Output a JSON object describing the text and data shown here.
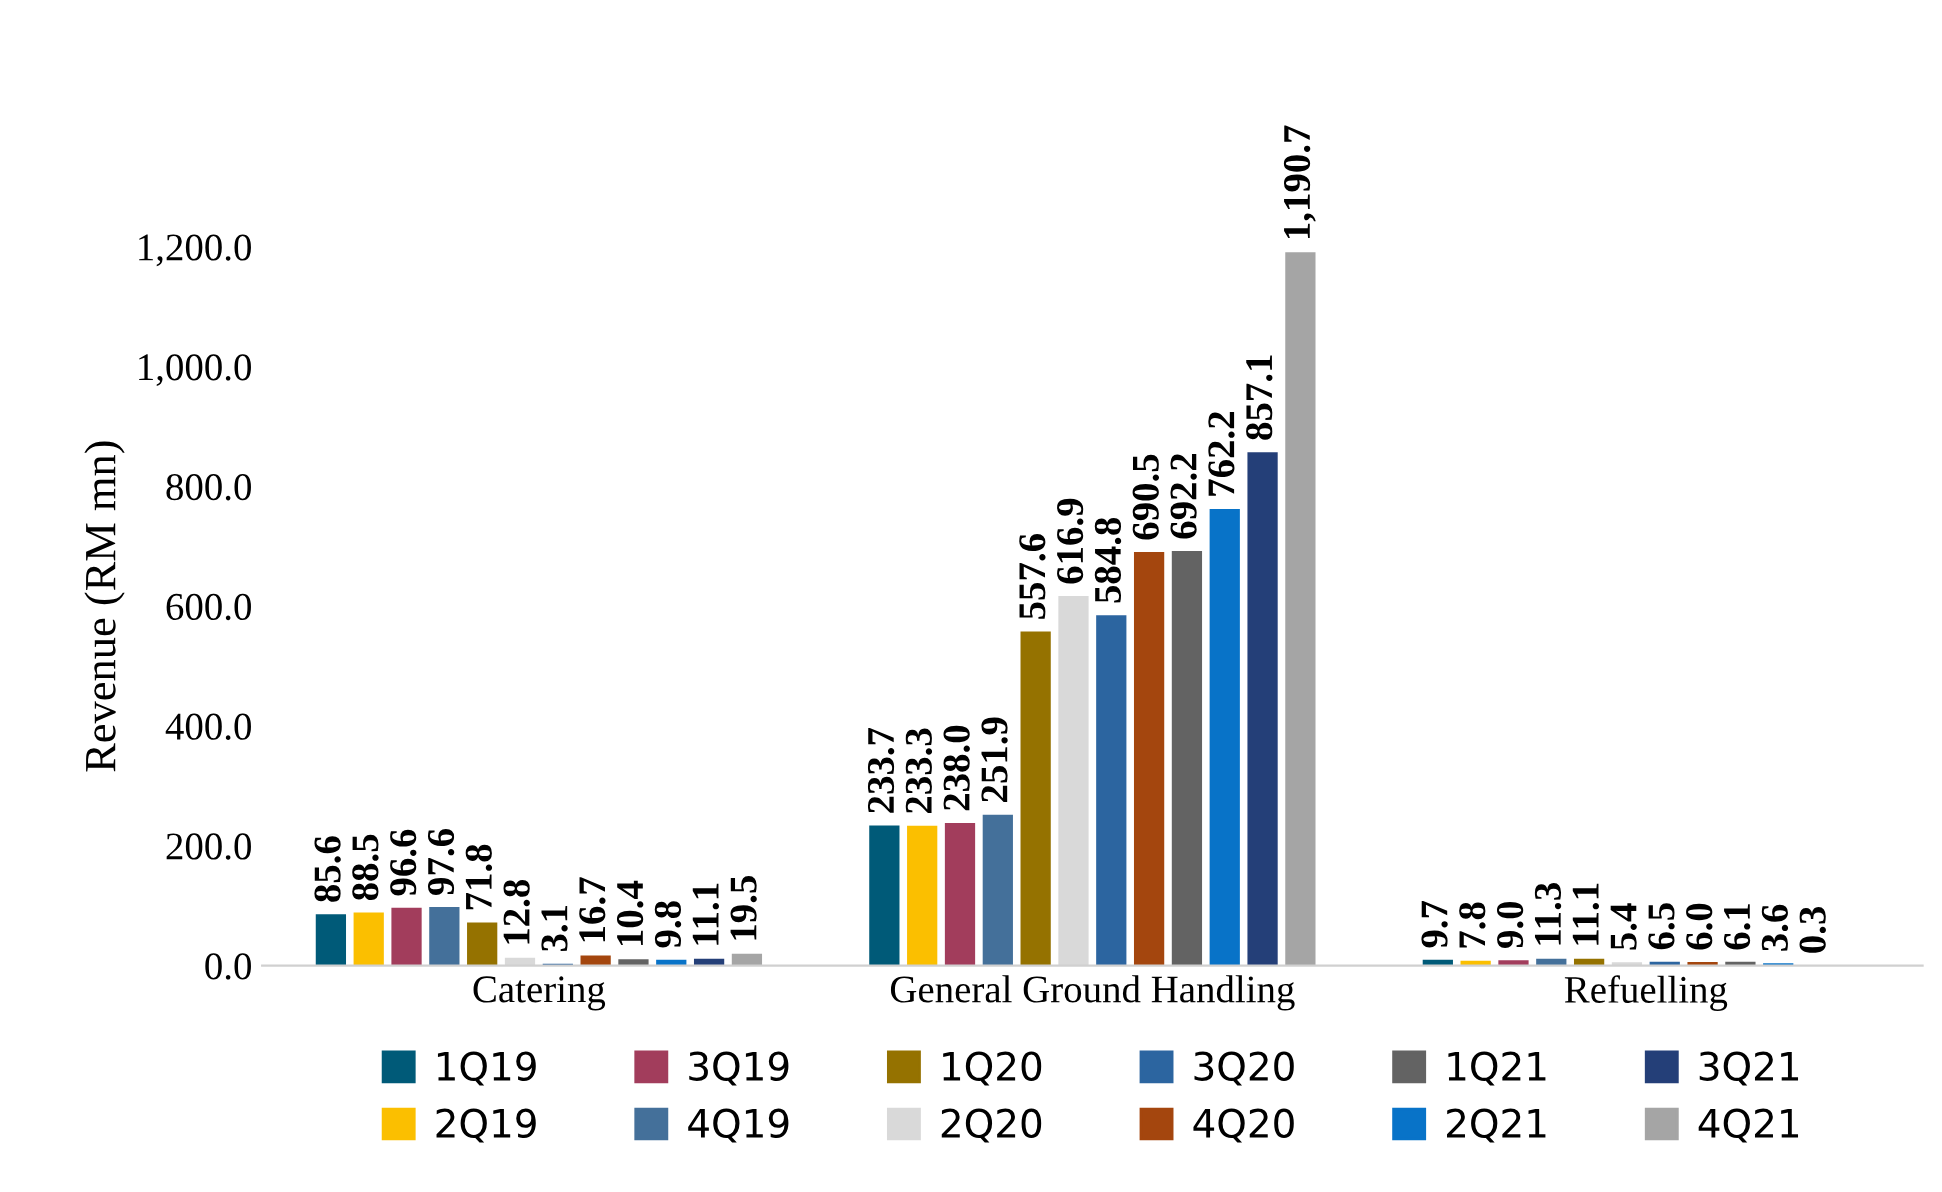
{
  "chart_data": {
    "type": "bar",
    "ylabel": "Revenue (RM mn)",
    "categories": [
      "Catering",
      "General Ground Handling",
      "Refuelling"
    ],
    "ylim": [
      0,
      1200
    ],
    "yticks": [
      {
        "value": 0,
        "label": "0.0"
      },
      {
        "value": 200,
        "label": "200.0"
      },
      {
        "value": 400,
        "label": "400.0"
      },
      {
        "value": 600,
        "label": "600.0"
      },
      {
        "value": 800,
        "label": "800.0"
      },
      {
        "value": 1000,
        "label": "1,000.0"
      },
      {
        "value": 1200,
        "label": "1,200.0"
      }
    ],
    "grid": false,
    "legend": "bottom",
    "series": [
      {
        "name": "1Q19",
        "color": "#005a78",
        "values": [
          85.6,
          233.7,
          9.7
        ],
        "value_labels": [
          "85.6",
          "233.7",
          "9.7"
        ]
      },
      {
        "name": "2Q19",
        "color": "#fbbf00",
        "values": [
          88.5,
          233.3,
          7.8
        ],
        "value_labels": [
          "88.5",
          "233.3",
          "7.8"
        ]
      },
      {
        "name": "3Q19",
        "color": "#a23d5c",
        "values": [
          96.6,
          238.0,
          9.0
        ],
        "value_labels": [
          "96.6",
          "238.0",
          "9.0"
        ]
      },
      {
        "name": "4Q19",
        "color": "#44709a",
        "values": [
          97.6,
          251.9,
          11.3
        ],
        "value_labels": [
          "97.6",
          "251.9",
          "11.3"
        ]
      },
      {
        "name": "1Q20",
        "color": "#957200",
        "values": [
          71.8,
          557.6,
          11.1
        ],
        "value_labels": [
          "71.8",
          "557.6",
          "11.1"
        ]
      },
      {
        "name": "2Q20",
        "color": "#d9d9d9",
        "values": [
          12.8,
          616.9,
          5.4
        ],
        "value_labels": [
          "12.8",
          "616.9",
          "5.4"
        ]
      },
      {
        "name": "3Q20",
        "color": "#2c65a0",
        "values": [
          3.1,
          584.8,
          6.5
        ],
        "value_labels": [
          "3.1",
          "584.8",
          "6.5"
        ]
      },
      {
        "name": "4Q20",
        "color": "#a4460e",
        "values": [
          16.7,
          690.5,
          6.0
        ],
        "value_labels": [
          "16.7",
          "690.5",
          "6.0"
        ]
      },
      {
        "name": "1Q21",
        "color": "#636363",
        "values": [
          10.4,
          692.2,
          6.1
        ],
        "value_labels": [
          "10.4",
          "692.2",
          "6.1"
        ]
      },
      {
        "name": "2Q21",
        "color": "#0873c8",
        "values": [
          9.8,
          762.2,
          3.6
        ],
        "value_labels": [
          "9.8",
          "762.2",
          "3.6"
        ]
      },
      {
        "name": "3Q21",
        "color": "#243f78",
        "values": [
          11.1,
          857.1,
          0.3
        ],
        "value_labels": [
          "11.1",
          "857.1",
          "0.3"
        ]
      },
      {
        "name": "4Q21",
        "color": "#a5a5a5",
        "values": [
          19.5,
          1190.7,
          null
        ],
        "value_labels": [
          "19.5",
          "1,190.7",
          null
        ]
      }
    ]
  }
}
